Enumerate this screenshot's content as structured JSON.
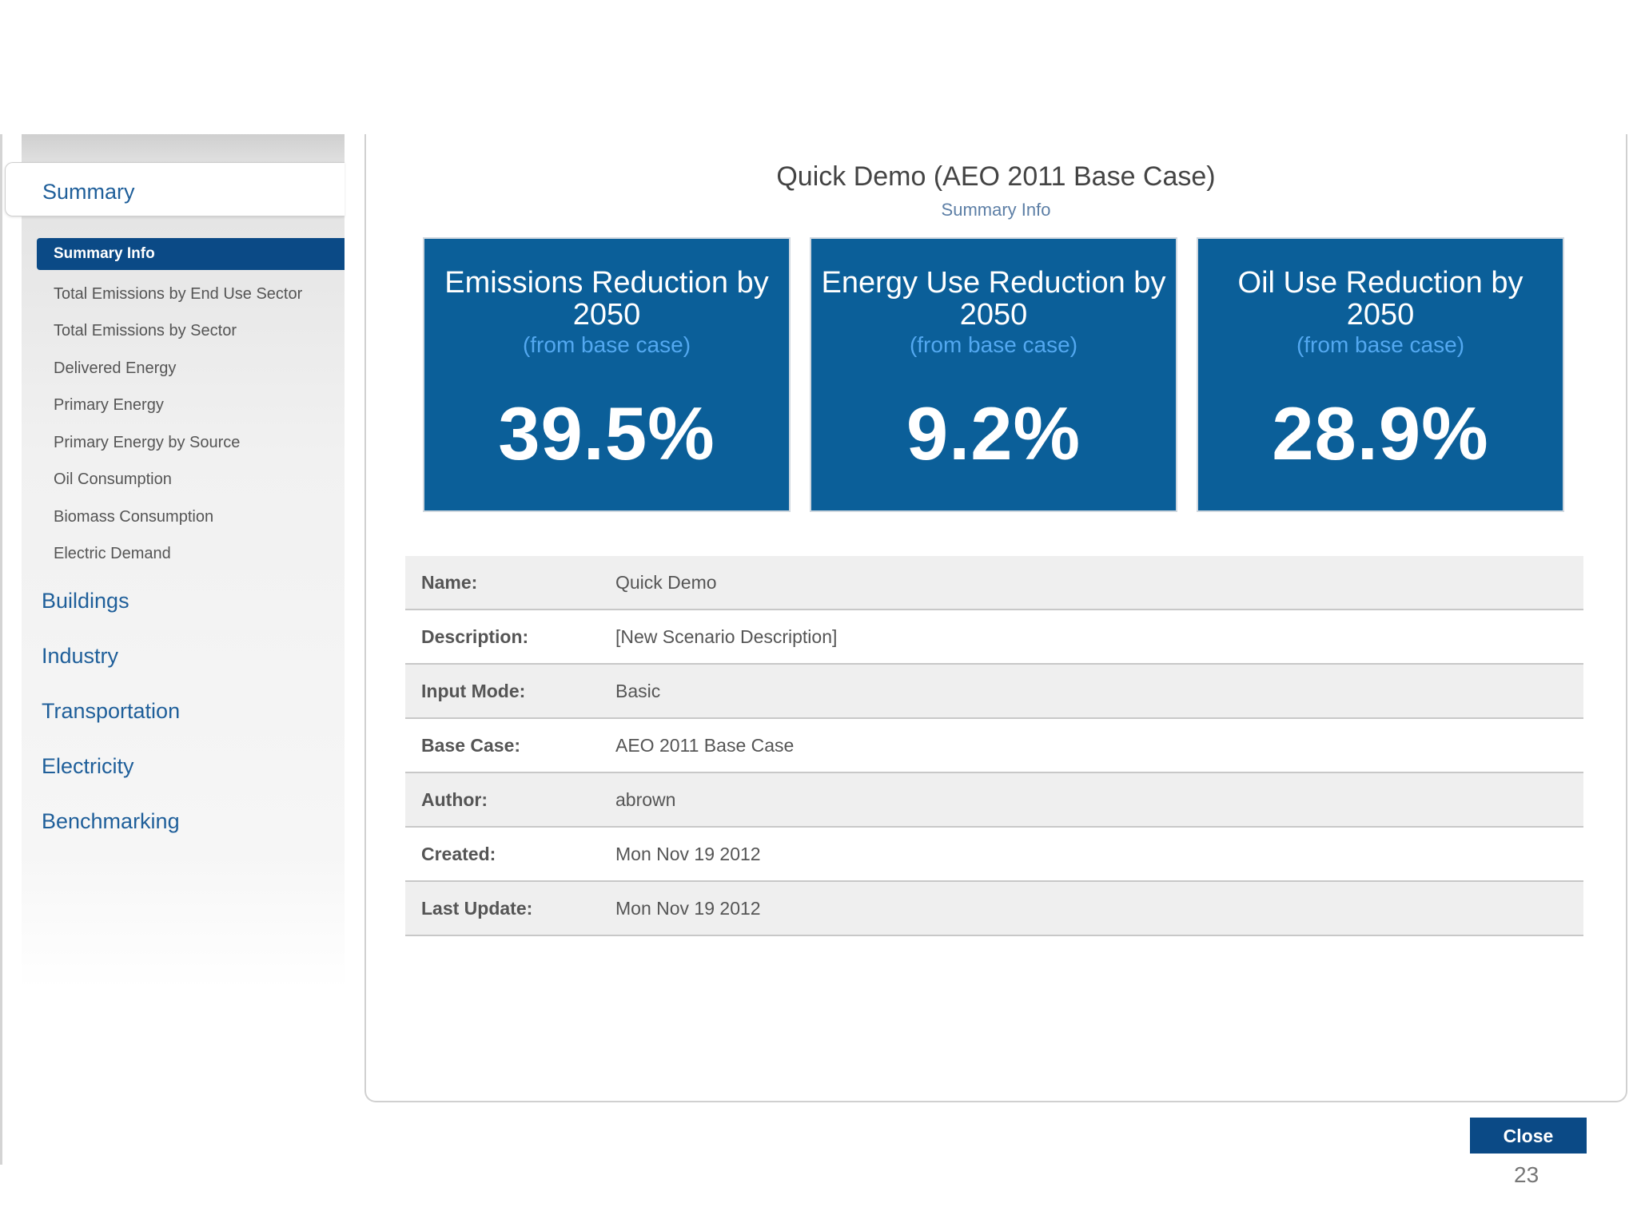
{
  "sidebar": {
    "summary_label": "Summary",
    "sub_items": [
      {
        "label": "Summary Info",
        "active": true
      },
      {
        "label": "Total Emissions by End Use Sector"
      },
      {
        "label": "Total Emissions by Sector"
      },
      {
        "label": "Delivered Energy"
      },
      {
        "label": "Primary Energy"
      },
      {
        "label": "Primary Energy by Source"
      },
      {
        "label": "Oil Consumption"
      },
      {
        "label": "Biomass Consumption"
      },
      {
        "label": "Electric Demand"
      }
    ],
    "main_items": [
      {
        "label": "Buildings"
      },
      {
        "label": "Industry"
      },
      {
        "label": "Transportation"
      },
      {
        "label": "Electricity"
      },
      {
        "label": "Benchmarking"
      }
    ]
  },
  "main": {
    "title": "Quick Demo (AEO 2011 Base Case)",
    "subtitle": "Summary Info",
    "cards": [
      {
        "title": "Emissions Reduction by 2050",
        "sub": "(from base case)",
        "value": "39.5%"
      },
      {
        "title": "Energy Use Reduction by 2050",
        "sub": "(from base case)",
        "value": "9.2%"
      },
      {
        "title": "Oil Use Reduction by 2050",
        "sub": "(from base case)",
        "value": "28.9%"
      }
    ],
    "info": [
      {
        "label": "Name:",
        "value": "Quick Demo"
      },
      {
        "label": "Description:",
        "value": "[New Scenario Description]"
      },
      {
        "label": "Input Mode:",
        "value": "Basic"
      },
      {
        "label": "Base Case:",
        "value": "AEO 2011 Base Case"
      },
      {
        "label": "Author:",
        "value": "abrown"
      },
      {
        "label": "Created:",
        "value": "Mon Nov 19 2012"
      },
      {
        "label": "Last Update:",
        "value": "Mon Nov 19 2012"
      }
    ]
  },
  "footer": {
    "close_label": "Close",
    "page_number": "23"
  },
  "colors": {
    "card_bg": "#0b5f99",
    "card_sub": "#53a8f0",
    "active_nav": "#0b4a86",
    "nav_link": "#1f5f9a"
  }
}
